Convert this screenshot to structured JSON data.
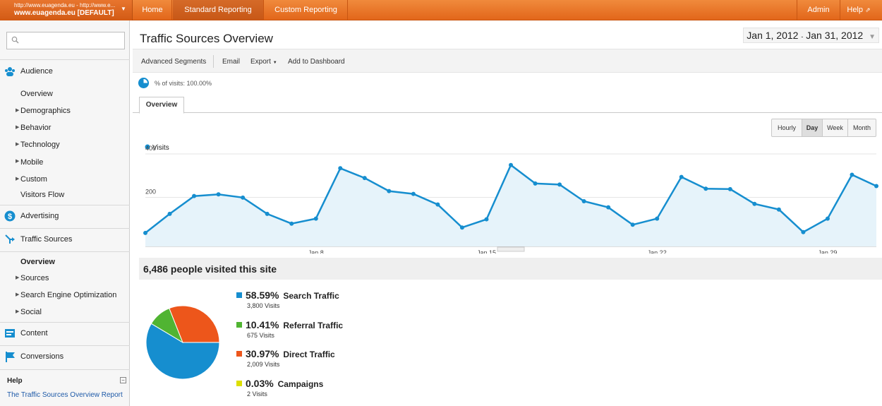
{
  "account": {
    "url_line": "http://www.euagenda.eu - http://www.e...",
    "name": "www.euagenda.eu [DEFAULT]",
    "dropdown": "▼"
  },
  "nav": {
    "home": "Home",
    "standard": "Standard Reporting",
    "custom": "Custom Reporting",
    "admin": "Admin",
    "help": "Help"
  },
  "sidebar": {
    "search_placeholder": "",
    "audience": {
      "label": "Audience",
      "items": [
        "Overview",
        "Demographics",
        "Behavior",
        "Technology",
        "Mobile",
        "Custom",
        "Visitors Flow"
      ]
    },
    "advertising": "Advertising",
    "traffic": {
      "label": "Traffic Sources",
      "items": [
        "Overview",
        "Sources",
        "Search Engine Optimization",
        "Social"
      ]
    },
    "content": "Content",
    "conversions": "Conversions",
    "help": {
      "title": "Help",
      "link": "The Traffic Sources Overview Report"
    }
  },
  "page": {
    "title": "Traffic Sources Overview",
    "date_start": "Jan 1, 2012",
    "date_sep": "-",
    "date_end": "Jan 31, 2012"
  },
  "toolbar": {
    "segments": "Advanced Segments",
    "email": "Email",
    "export": "Export",
    "dashboard": "Add to Dashboard"
  },
  "segment_text": "% of visits: 100.00%",
  "tab": "Overview",
  "granularity": [
    "Hourly",
    "Day",
    "Week",
    "Month"
  ],
  "summary": "6,486 people visited this site",
  "colors": {
    "accent": "#f08a3c",
    "line": "#168ecf",
    "area": "#e6f3fa",
    "search": "#168ecf",
    "referral": "#50b432",
    "direct": "#ed561b",
    "campaigns": "#dddf00"
  },
  "chart_data": [
    {
      "type": "line",
      "series": [
        {
          "name": "Visits",
          "x": [
            "Jan 1",
            "Jan 2",
            "Jan 3",
            "Jan 4",
            "Jan 5",
            "Jan 6",
            "Jan 7",
            "Jan 8",
            "Jan 9",
            "Jan 10",
            "Jan 11",
            "Jan 12",
            "Jan 13",
            "Jan 14",
            "Jan 15",
            "Jan 16",
            "Jan 17",
            "Jan 18",
            "Jan 19",
            "Jan 20",
            "Jan 21",
            "Jan 22",
            "Jan 23",
            "Jan 24",
            "Jan 25",
            "Jan 26",
            "Jan 27",
            "Jan 28",
            "Jan 29",
            "Jan 30",
            "Jan 31"
          ],
          "values": [
            62,
            150,
            232,
            240,
            225,
            150,
            105,
            128,
            360,
            315,
            255,
            242,
            193,
            87,
            125,
            375,
            290,
            285,
            208,
            180,
            100,
            128,
            320,
            266,
            264,
            196,
            170,
            66,
            128,
            330,
            278
          ]
        }
      ],
      "yticks": [
        200,
        400
      ],
      "xticks": [
        "Jan 8",
        "Jan 15",
        "Jan 22",
        "Jan 29"
      ],
      "ylim": [
        0,
        400
      ]
    },
    {
      "type": "pie",
      "slices": [
        {
          "label": "Search Traffic",
          "percent": 58.59,
          "visits": 3800
        },
        {
          "label": "Referral Traffic",
          "percent": 10.41,
          "visits": 675
        },
        {
          "label": "Direct Traffic",
          "percent": 30.97,
          "visits": 2009
        },
        {
          "label": "Campaigns",
          "percent": 0.03,
          "visits": 2
        }
      ]
    }
  ],
  "legend": [
    {
      "pct": "58.59%",
      "name": "Search Traffic",
      "visits": "3,800 Visits"
    },
    {
      "pct": "10.41%",
      "name": "Referral Traffic",
      "visits": "675 Visits"
    },
    {
      "pct": "30.97%",
      "name": "Direct Traffic",
      "visits": "2,009 Visits"
    },
    {
      "pct": "0.03%",
      "name": "Campaigns",
      "visits": "2 Visits"
    }
  ]
}
